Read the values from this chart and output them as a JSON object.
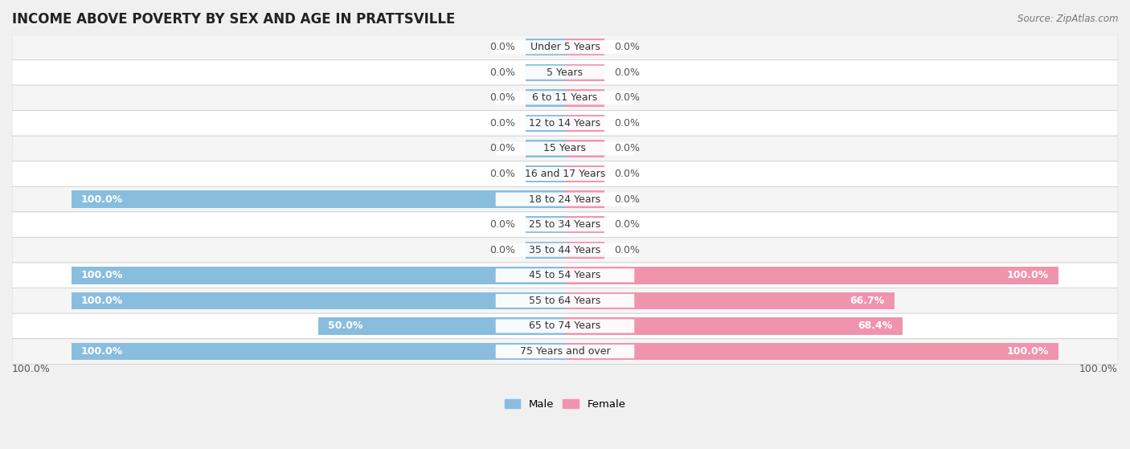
{
  "title": "INCOME ABOVE POVERTY BY SEX AND AGE IN PRATTSVILLE",
  "source": "Source: ZipAtlas.com",
  "categories": [
    "Under 5 Years",
    "5 Years",
    "6 to 11 Years",
    "12 to 14 Years",
    "15 Years",
    "16 and 17 Years",
    "18 to 24 Years",
    "25 to 34 Years",
    "35 to 44 Years",
    "45 to 54 Years",
    "55 to 64 Years",
    "65 to 74 Years",
    "75 Years and over"
  ],
  "male_values": [
    0.0,
    0.0,
    0.0,
    0.0,
    0.0,
    0.0,
    100.0,
    0.0,
    0.0,
    100.0,
    100.0,
    50.0,
    100.0
  ],
  "female_values": [
    0.0,
    0.0,
    0.0,
    0.0,
    0.0,
    0.0,
    0.0,
    0.0,
    0.0,
    100.0,
    66.7,
    68.4,
    100.0
  ],
  "male_color": "#89bdde",
  "female_color": "#f094ae",
  "male_label": "Male",
  "female_label": "Female",
  "background_color": "#f0f0f0",
  "row_even_color": "#f5f5f5",
  "row_odd_color": "#ffffff",
  "bar_height": 0.68,
  "stub_size": 8.0,
  "title_fontsize": 12,
  "label_fontsize": 9,
  "tick_fontsize": 9,
  "cat_fontsize": 9
}
